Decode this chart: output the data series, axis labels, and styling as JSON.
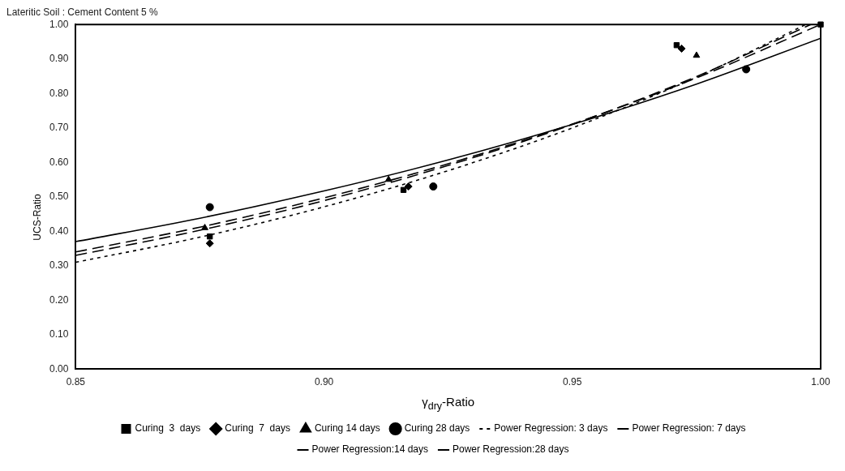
{
  "chart_data": {
    "type": "scatter",
    "title": "Lateritic Soil : Cement Content 5 %",
    "xlabel": "γ$_{dry}$-Ratio",
    "ylabel": "UCS-Ratio",
    "xlim": [
      0.85,
      1.0
    ],
    "xticks": [
      0.85,
      {
        "value": 0.9,
        "label": "0.90"
      },
      0.95,
      {
        "value": 1.0,
        "label": "1.00"
      }
    ],
    "ylim": [
      0,
      1
    ],
    "yticks": [
      {
        "value": 0,
        "label": "0.00"
      },
      {
        "value": 0.1,
        "label": "0.10"
      },
      {
        "value": 0.2,
        "label": "0.20"
      },
      {
        "value": 0.3,
        "label": "0.30"
      },
      {
        "value": 0.4,
        "label": "0.40"
      },
      {
        "value": 0.5,
        "label": "0.50"
      },
      {
        "value": 0.6,
        "label": "0.60"
      },
      {
        "value": 0.7,
        "label": "0.70"
      },
      {
        "value": 0.8,
        "label": "0.80"
      },
      {
        "value": 0.9,
        "label": "0.90"
      },
      {
        "value": 1,
        "label": "1.00"
      }
    ],
    "grid": false,
    "legend": "bottom",
    "series": [
      {
        "name": "Curing  3  days",
        "marker": "square",
        "color": "#000000",
        "x": [
          0.877,
          0.916,
          0.971,
          1.0
        ],
        "values": [
          0.385,
          0.52,
          0.94,
          1.0
        ]
      },
      {
        "name": "Curing  7  days",
        "marker": "diamond",
        "color": "#000000",
        "x": [
          0.877,
          0.917,
          0.972
        ],
        "values": [
          0.365,
          0.53,
          0.93
        ]
      },
      {
        "name": "Curing 14 days",
        "marker": "triangle",
        "color": "#000000",
        "x": [
          0.876,
          0.913,
          0.975
        ],
        "values": [
          0.41,
          0.55,
          0.91
        ]
      },
      {
        "name": "Curing 28 days",
        "marker": "circle",
        "color": "#000000",
        "x": [
          0.877,
          0.922,
          0.985
        ],
        "values": [
          0.47,
          0.53,
          0.87
        ]
      },
      {
        "name": "Power Regression: 3 days",
        "type": "line",
        "line_style": "dotted",
        "color": "#000000",
        "x": [
          0.85,
          0.875,
          0.9,
          0.925,
          0.95,
          0.975,
          0.997
        ],
        "values": [
          0.31,
          0.383,
          0.471,
          0.576,
          0.7,
          0.847,
          1.0
        ]
      },
      {
        "name": "Power Regression: 7 days",
        "type": "line",
        "line_style": "dashed",
        "color": "#000000",
        "x": [
          0.85,
          0.875,
          0.9,
          0.925,
          0.95,
          0.975,
          0.998
        ],
        "values": [
          0.33,
          0.403,
          0.489,
          0.591,
          0.71,
          0.849,
          1.0
        ]
      },
      {
        "name": "Power Regression:14 days",
        "type": "line",
        "line_style": "dashed",
        "color": "#000000",
        "x": [
          0.85,
          0.875,
          0.9,
          0.925,
          0.95,
          0.975,
          1.0
        ],
        "values": [
          0.34,
          0.412,
          0.497,
          0.596,
          0.711,
          0.845,
          1.0
        ]
      },
      {
        "name": "Power Regression:28 days",
        "type": "line",
        "line_style": "solid",
        "color": "#000000",
        "x": [
          0.85,
          0.875,
          0.9,
          0.925,
          0.95,
          0.975,
          1.0
        ],
        "values": [
          0.37,
          0.438,
          0.517,
          0.607,
          0.71,
          0.827,
          0.96
        ]
      }
    ]
  }
}
